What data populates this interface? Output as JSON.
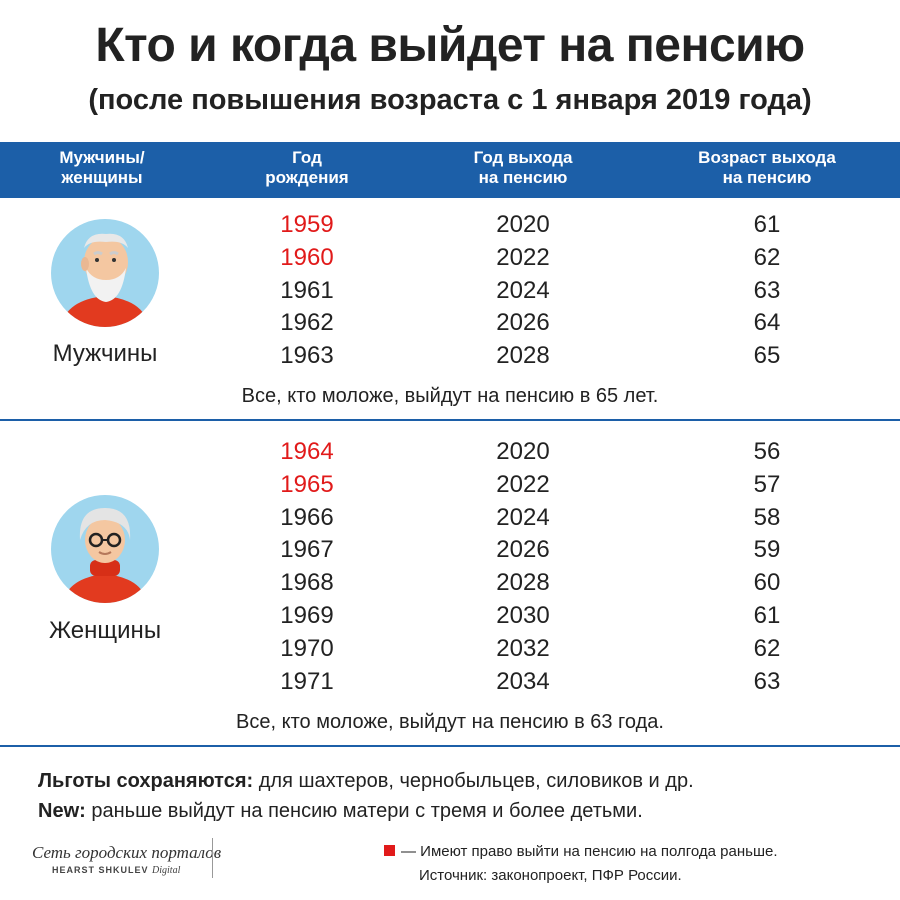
{
  "title": "Кто и когда выйдет на пенсию",
  "subtitle": "(после повышения возраста с 1 января 2019 года)",
  "header": {
    "col1": [
      "Мужчины/",
      "женщины"
    ],
    "col2": [
      "Год",
      "рождения"
    ],
    "col3": [
      "Год выхода",
      "на пенсию"
    ],
    "col4": [
      "Возраст выхода",
      "на пенсию"
    ]
  },
  "men": {
    "label": "Мужчины",
    "rows": [
      {
        "birth": "1959",
        "retire": "2020",
        "age": "61",
        "early": true
      },
      {
        "birth": "1960",
        "retire": "2022",
        "age": "62",
        "early": true
      },
      {
        "birth": "1961",
        "retire": "2024",
        "age": "63",
        "early": false
      },
      {
        "birth": "1962",
        "retire": "2026",
        "age": "64",
        "early": false
      },
      {
        "birth": "1963",
        "retire": "2028",
        "age": "65",
        "early": false
      }
    ],
    "note": "Все, кто моложе, выйдут на пенсию в 65 лет."
  },
  "women": {
    "label": "Женщины",
    "rows": [
      {
        "birth": "1964",
        "retire": "2020",
        "age": "56",
        "early": true
      },
      {
        "birth": "1965",
        "retire": "2022",
        "age": "57",
        "early": true
      },
      {
        "birth": "1966",
        "retire": "2024",
        "age": "58",
        "early": false
      },
      {
        "birth": "1967",
        "retire": "2026",
        "age": "59",
        "early": false
      },
      {
        "birth": "1968",
        "retire": "2028",
        "age": "60",
        "early": false
      },
      {
        "birth": "1969",
        "retire": "2030",
        "age": "61",
        "early": false
      },
      {
        "birth": "1970",
        "retire": "2032",
        "age": "62",
        "early": false
      },
      {
        "birth": "1971",
        "retire": "2034",
        "age": "63",
        "early": false
      }
    ],
    "note": "Все, кто моложе, выйдут на пенсию в 63 года."
  },
  "footer": {
    "benefits_bold": "Льготы сохраняются:",
    "benefits_text": " для шахтеров, чернобыльцев, силовиков и др.",
    "new_bold": "New:",
    "new_text": " раньше выйдут на пенсию матери с тремя и более детьми."
  },
  "logo": {
    "line1": "Сеть городских порталов",
    "line2": "HEARST SHKULEV",
    "line2_suffix": "Digital"
  },
  "legend": "— Имеют право выйти на пенсию на полгода раньше.",
  "source": "Источник: законопроект, ПФР России.",
  "colors": {
    "accent": "#1c5fa8",
    "early": "#e11a1a"
  },
  "icons": {
    "men_avatar": "old-man-avatar-icon",
    "women_avatar": "old-woman-avatar-icon"
  }
}
